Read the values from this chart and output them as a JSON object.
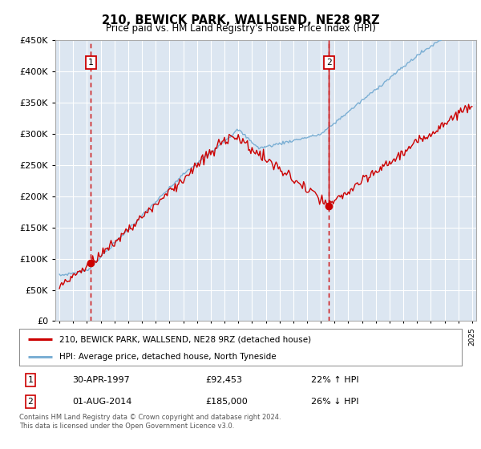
{
  "title": "210, BEWICK PARK, WALLSEND, NE28 9RZ",
  "subtitle": "Price paid vs. HM Land Registry's House Price Index (HPI)",
  "background_color": "#dce6f1",
  "grid_color": "#ffffff",
  "red_line_color": "#cc0000",
  "blue_line_color": "#7bafd4",
  "point1_year": 1997.292,
  "point1_value": 92453,
  "point2_year": 2014.583,
  "point2_value": 185000,
  "point1_date_str": "30-APR-1997",
  "point1_hpi_pct": "22% ↑ HPI",
  "point2_date_str": "01-AUG-2014",
  "point2_hpi_pct": "26% ↓ HPI",
  "legend_line1": "210, BEWICK PARK, WALLSEND, NE28 9RZ (detached house)",
  "legend_line2": "HPI: Average price, detached house, North Tyneside",
  "footnote": "Contains HM Land Registry data © Crown copyright and database right 2024.\nThis data is licensed under the Open Government Licence v3.0.",
  "ylim_max": 450000,
  "ylim_min": 0,
  "x_start_year": 1995,
  "x_end_year": 2025
}
